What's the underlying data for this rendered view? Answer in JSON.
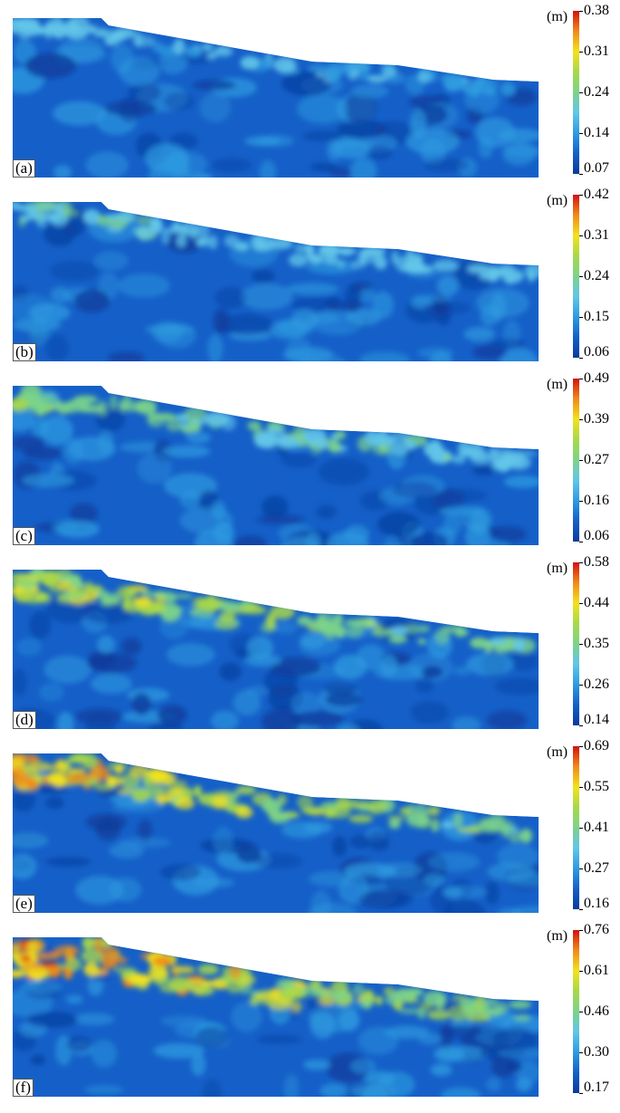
{
  "colorscale": {
    "stops": [
      "#0a3a9a",
      "#1560c8",
      "#2e9be0",
      "#63c6e8",
      "#7cd48a",
      "#a8d84a",
      "#f2e21c",
      "#f08a1a",
      "#d41010"
    ]
  },
  "panels": [
    {
      "label": "(a)",
      "unit": "(m)",
      "ticks": [
        "0.38",
        "0.31",
        "0.24",
        "0.14",
        "0.07"
      ],
      "intensity": 0.15
    },
    {
      "label": "(b)",
      "unit": "(m)",
      "ticks": [
        "0.42",
        "0.31",
        "0.24",
        "0.15",
        "0.06"
      ],
      "intensity": 0.3
    },
    {
      "label": "(c)",
      "unit": "(m)",
      "ticks": [
        "0.49",
        "0.39",
        "0.27",
        "0.16",
        "0.06"
      ],
      "intensity": 0.45
    },
    {
      "label": "(d)",
      "unit": "(m)",
      "ticks": [
        "0.58",
        "0.44",
        "0.35",
        "0.26",
        "0.14"
      ],
      "intensity": 0.65
    },
    {
      "label": "(e)",
      "unit": "(m)",
      "ticks": [
        "0.69",
        "0.55",
        "0.41",
        "0.27",
        "0.16"
      ],
      "intensity": 0.8
    },
    {
      "label": "(f)",
      "unit": "(m)",
      "ticks": [
        "0.76",
        "0.61",
        "0.46",
        "0.30",
        "0.17"
      ],
      "intensity": 0.95
    }
  ]
}
